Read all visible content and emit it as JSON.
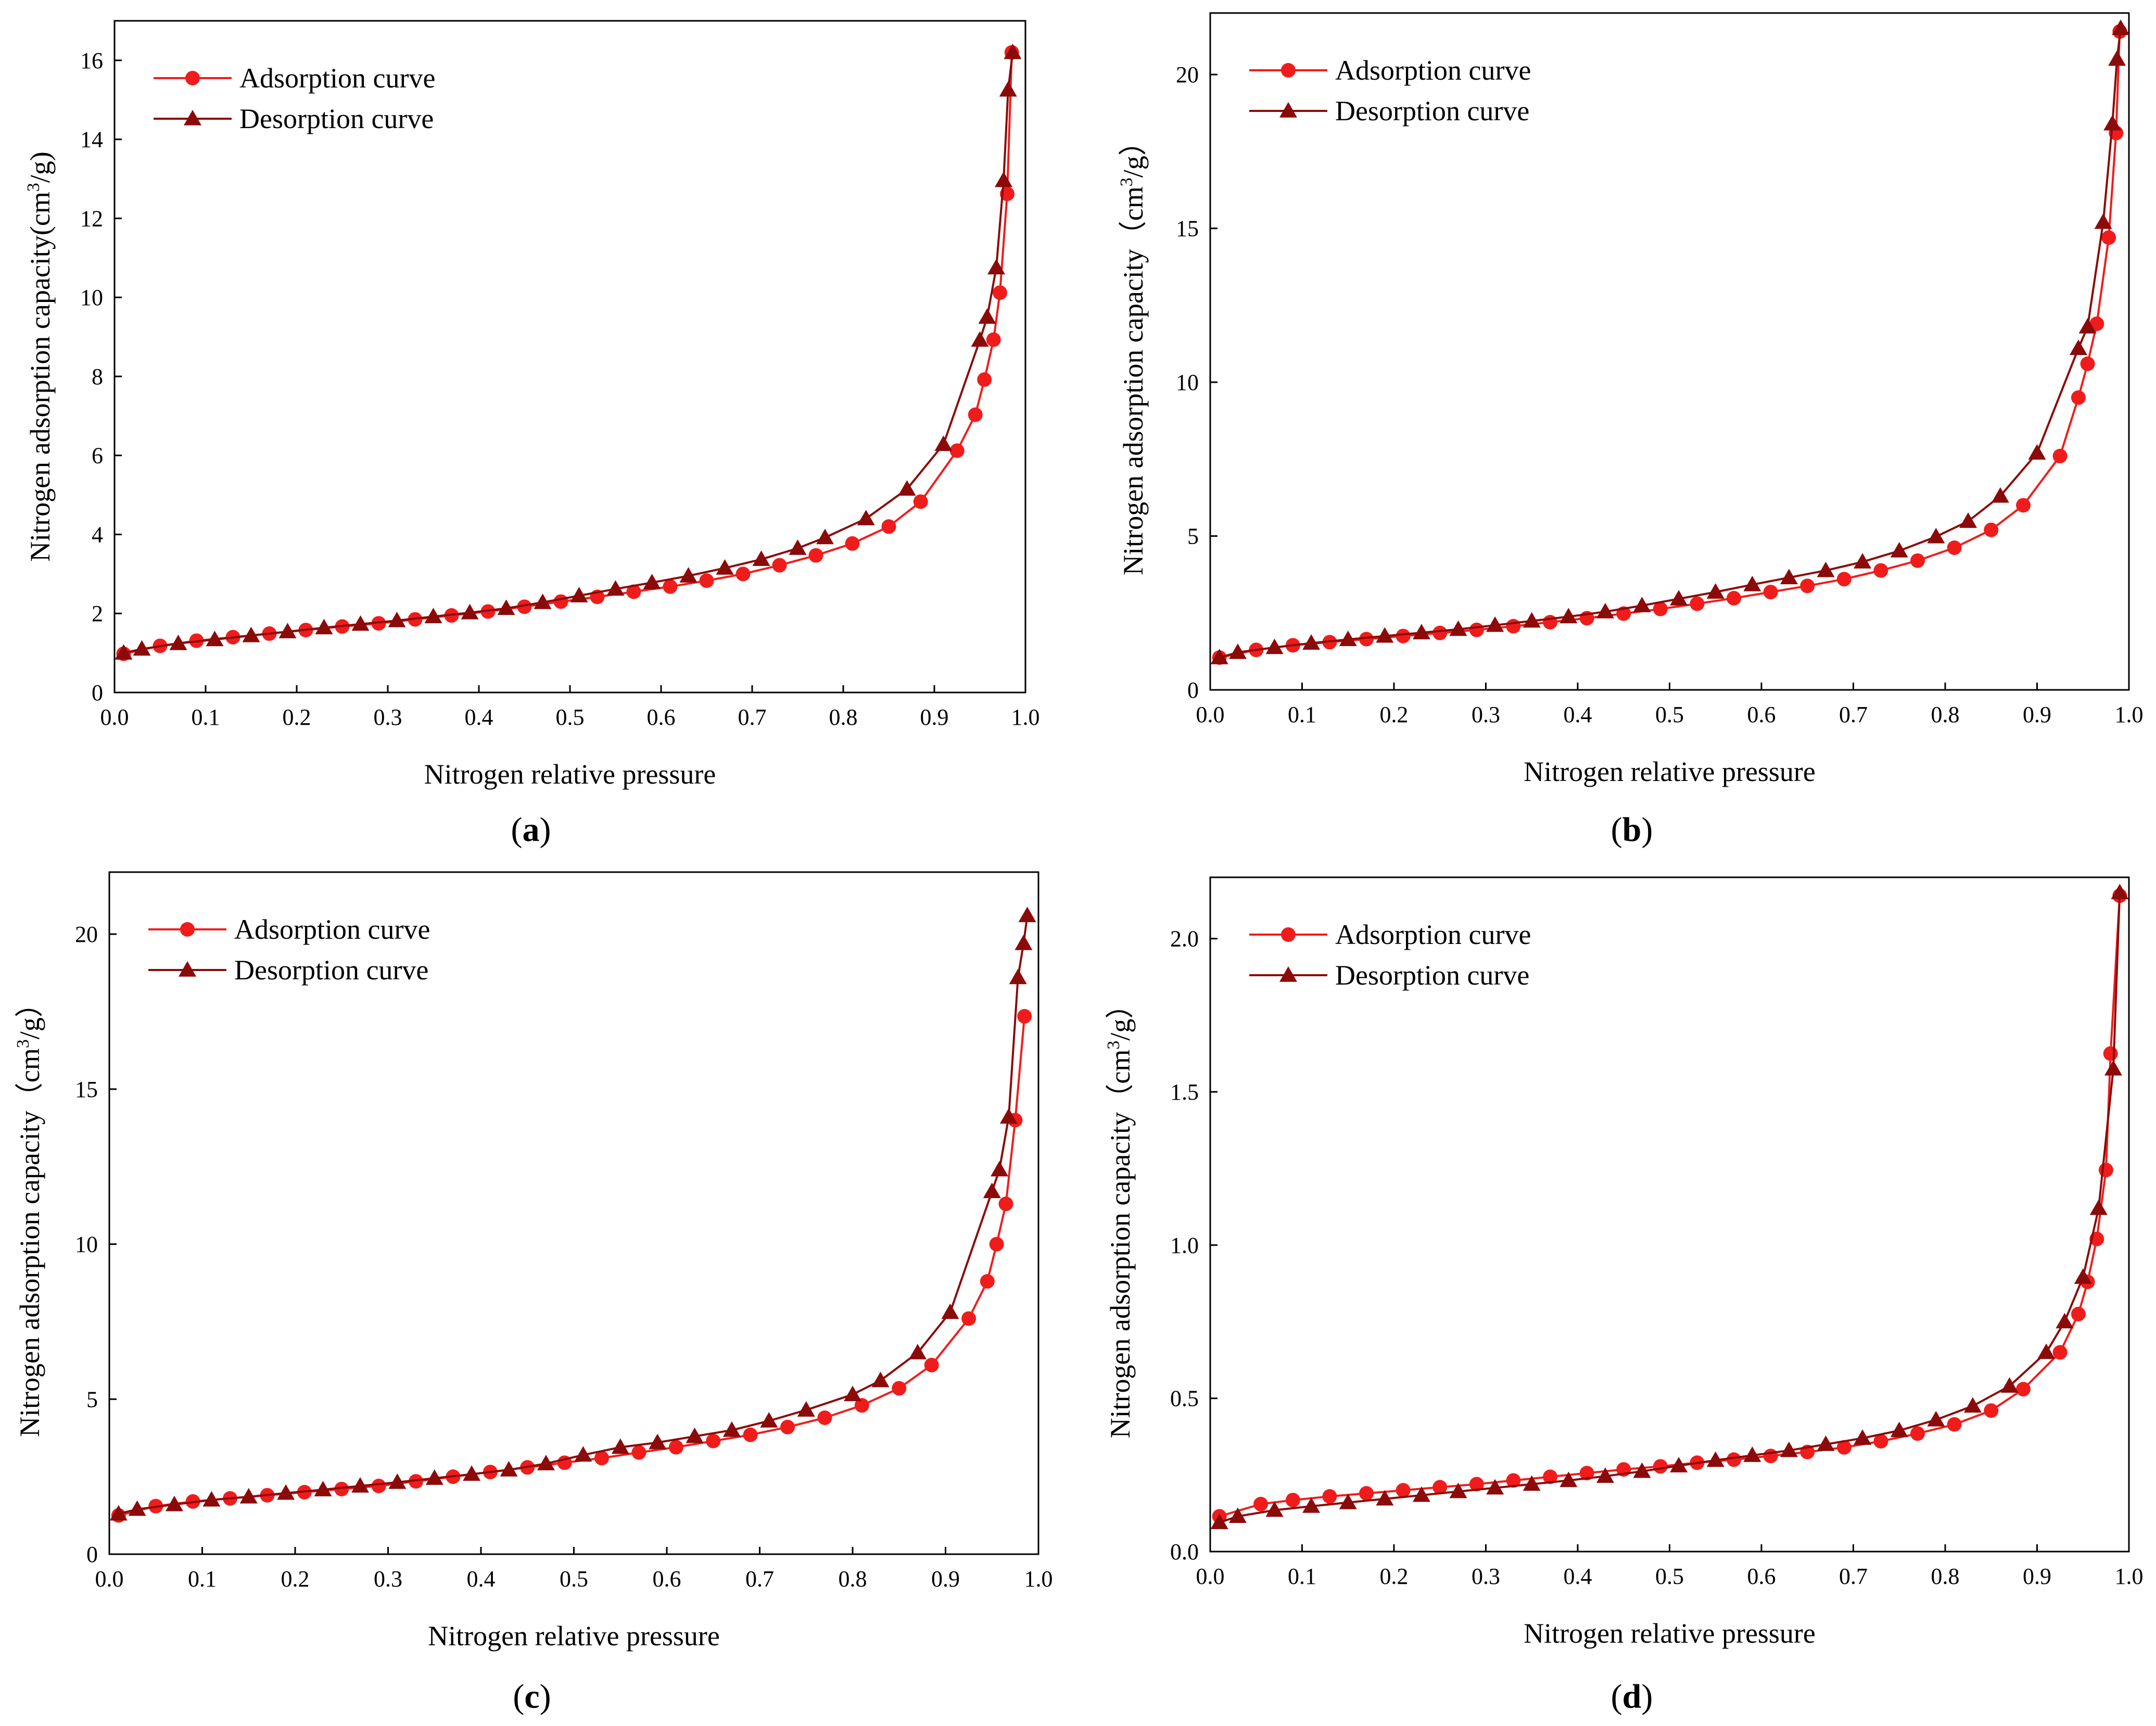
{
  "figure": {
    "colors": {
      "adsorption": "#f01c1c",
      "desorption": "#8b0a0a",
      "axis": "#000000",
      "background": "#ffffff"
    },
    "panels": [
      {
        "id": "a",
        "caption": {
          "open": "(",
          "letter": "a",
          "close": ")"
        },
        "chart_data": {
          "type": "line",
          "title": "",
          "xlabel": "Nitrogen relative pressure",
          "ylabel": "Nitrogen adsorption capacity(cm³/g)",
          "ylabel_parts": {
            "main": "Nitrogen adsorption capacity(cm",
            "sup": "3",
            "tail": "/g)"
          },
          "xlim": [
            0.0,
            1.0
          ],
          "ylim": [
            0,
            17
          ],
          "xticks": [
            0.0,
            0.1,
            0.2,
            0.3,
            0.4,
            0.5,
            0.6,
            0.7,
            0.8,
            0.9,
            1.0
          ],
          "xtick_labels": [
            "0.0",
            "0.1",
            "0.2",
            "0.3",
            "0.4",
            "0.5",
            "0.6",
            "0.7",
            "0.8",
            "0.9",
            "1.0"
          ],
          "yticks": [
            0,
            2,
            4,
            6,
            8,
            10,
            12,
            14,
            16
          ],
          "ytick_labels": [
            "0",
            "2",
            "4",
            "6",
            "8",
            "10",
            "12",
            "14",
            "16"
          ],
          "legend": "top-left",
          "series": [
            {
              "name": "Adsorption curve",
              "marker": "circle",
              "x": [
                0.01,
                0.05,
                0.09,
                0.13,
                0.17,
                0.21,
                0.25,
                0.29,
                0.33,
                0.37,
                0.41,
                0.45,
                0.49,
                0.53,
                0.57,
                0.61,
                0.65,
                0.69,
                0.73,
                0.77,
                0.81,
                0.85,
                0.885,
                0.925,
                0.945,
                0.955,
                0.965,
                0.972,
                0.98,
                0.985
              ],
              "y": [
                0.98,
                1.18,
                1.31,
                1.4,
                1.49,
                1.58,
                1.67,
                1.75,
                1.85,
                1.95,
                2.05,
                2.17,
                2.3,
                2.42,
                2.55,
                2.68,
                2.83,
                3.0,
                3.22,
                3.47,
                3.77,
                4.2,
                4.83,
                6.12,
                7.03,
                7.92,
                8.93,
                10.12,
                12.62,
                16.2
              ]
            },
            {
              "name": "Desorption curve",
              "marker": "triangle",
              "x": [
                0.01,
                0.03,
                0.07,
                0.11,
                0.15,
                0.19,
                0.23,
                0.27,
                0.31,
                0.35,
                0.39,
                0.43,
                0.47,
                0.51,
                0.55,
                0.59,
                0.63,
                0.67,
                0.71,
                0.75,
                0.78,
                0.825,
                0.87,
                0.91,
                0.95,
                0.958,
                0.968,
                0.976,
                0.981,
                0.986
              ],
              "y": [
                1.0,
                1.1,
                1.24,
                1.34,
                1.44,
                1.54,
                1.64,
                1.73,
                1.82,
                1.92,
                2.02,
                2.13,
                2.28,
                2.45,
                2.62,
                2.78,
                2.95,
                3.15,
                3.37,
                3.65,
                3.92,
                4.4,
                5.15,
                6.28,
                8.92,
                9.5,
                10.75,
                12.96,
                15.25,
                16.2
              ]
            }
          ]
        }
      },
      {
        "id": "b",
        "caption": {
          "open": "(",
          "letter": "b",
          "close": ")"
        },
        "chart_data": {
          "type": "line",
          "title": "",
          "xlabel": "Nitrogen relative pressure",
          "ylabel": "Nitrogen adsorption capacity（cm³/g）",
          "ylabel_parts": {
            "main": "Nitrogen adsorption capacity（cm",
            "sup": "3",
            "tail": "/g）"
          },
          "xlim": [
            0.0,
            1.0
          ],
          "ylim": [
            0,
            22
          ],
          "xticks": [
            0.0,
            0.1,
            0.2,
            0.3,
            0.4,
            0.5,
            0.6,
            0.7,
            0.8,
            0.9,
            1.0
          ],
          "xtick_labels": [
            "0.0",
            "0.1",
            "0.2",
            "0.3",
            "0.4",
            "0.5",
            "0.6",
            "0.7",
            "0.8",
            "0.9",
            "1.0"
          ],
          "yticks": [
            0,
            5,
            10,
            15,
            20
          ],
          "ytick_labels": [
            "0",
            "5",
            "10",
            "15",
            "20"
          ],
          "legend": "top-left",
          "series": [
            {
              "name": "Adsorption curve",
              "marker": "circle",
              "x": [
                0.01,
                0.05,
                0.09,
                0.13,
                0.17,
                0.21,
                0.25,
                0.29,
                0.33,
                0.37,
                0.41,
                0.45,
                0.49,
                0.53,
                0.57,
                0.61,
                0.65,
                0.69,
                0.73,
                0.77,
                0.81,
                0.85,
                0.885,
                0.925,
                0.945,
                0.955,
                0.965,
                0.978,
                0.986,
                0.99
              ],
              "y": [
                1.05,
                1.3,
                1.45,
                1.55,
                1.65,
                1.75,
                1.85,
                1.95,
                2.07,
                2.2,
                2.33,
                2.48,
                2.63,
                2.8,
                2.98,
                3.18,
                3.38,
                3.6,
                3.88,
                4.2,
                4.62,
                5.2,
                6.0,
                7.6,
                9.5,
                10.6,
                11.9,
                14.7,
                18.1,
                21.4
              ]
            },
            {
              "name": "Desorption curve",
              "marker": "triangle",
              "x": [
                0.01,
                0.03,
                0.07,
                0.11,
                0.15,
                0.19,
                0.23,
                0.27,
                0.31,
                0.35,
                0.39,
                0.43,
                0.47,
                0.51,
                0.55,
                0.59,
                0.63,
                0.67,
                0.71,
                0.75,
                0.79,
                0.825,
                0.86,
                0.9,
                0.945,
                0.955,
                0.972,
                0.982,
                0.987,
                0.991
              ],
              "y": [
                1.05,
                1.22,
                1.38,
                1.52,
                1.64,
                1.75,
                1.86,
                1.97,
                2.1,
                2.24,
                2.38,
                2.54,
                2.74,
                2.96,
                3.18,
                3.42,
                3.65,
                3.88,
                4.16,
                4.52,
                4.98,
                5.48,
                6.3,
                7.7,
                11.1,
                11.8,
                15.2,
                18.4,
                20.5,
                21.5
              ]
            }
          ]
        }
      },
      {
        "id": "c",
        "caption": {
          "open": "(",
          "letter": "c",
          "close": ")"
        },
        "chart_data": {
          "type": "line",
          "title": "",
          "xlabel": "Nitrogen relative pressure",
          "ylabel": "Nitrogen adsorption capacity（cm³/g）",
          "ylabel_parts": {
            "main": "Nitrogen adsorption capacity（cm",
            "sup": "3",
            "tail": "/g）"
          },
          "xlim": [
            0.0,
            1.0
          ],
          "ylim": [
            0,
            22
          ],
          "xticks": [
            0.0,
            0.1,
            0.2,
            0.3,
            0.4,
            0.5,
            0.6,
            0.7,
            0.8,
            0.9,
            1.0
          ],
          "xtick_labels": [
            "0.0",
            "0.1",
            "0.2",
            "0.3",
            "0.4",
            "0.5",
            "0.6",
            "0.7",
            "0.8",
            "0.9",
            "1.0"
          ],
          "yticks": [
            0,
            5,
            10,
            15,
            20
          ],
          "ytick_labels": [
            "0",
            "5",
            "10",
            "15",
            "20"
          ],
          "legend": "top-left",
          "series": [
            {
              "name": "Adsorption curve",
              "marker": "circle",
              "x": [
                0.01,
                0.05,
                0.09,
                0.13,
                0.17,
                0.21,
                0.25,
                0.29,
                0.33,
                0.37,
                0.41,
                0.45,
                0.49,
                0.53,
                0.57,
                0.61,
                0.65,
                0.69,
                0.73,
                0.77,
                0.81,
                0.85,
                0.885,
                0.925,
                0.945,
                0.955,
                0.965,
                0.975,
                0.985
              ],
              "y": [
                1.25,
                1.55,
                1.7,
                1.8,
                1.9,
                2.0,
                2.1,
                2.2,
                2.35,
                2.5,
                2.65,
                2.8,
                2.95,
                3.1,
                3.28,
                3.45,
                3.65,
                3.85,
                4.1,
                4.4,
                4.8,
                5.35,
                6.1,
                7.6,
                8.8,
                10.0,
                11.3,
                14.0,
                17.35
              ]
            },
            {
              "name": "Desorption curve",
              "marker": "triangle",
              "x": [
                0.01,
                0.03,
                0.07,
                0.11,
                0.15,
                0.19,
                0.23,
                0.27,
                0.31,
                0.35,
                0.39,
                0.43,
                0.47,
                0.51,
                0.55,
                0.59,
                0.63,
                0.67,
                0.71,
                0.75,
                0.8,
                0.83,
                0.87,
                0.905,
                0.95,
                0.958,
                0.968,
                0.978,
                0.984,
                0.988
              ],
              "y": [
                1.3,
                1.45,
                1.6,
                1.75,
                1.85,
                1.97,
                2.08,
                2.2,
                2.32,
                2.45,
                2.58,
                2.72,
                2.92,
                3.2,
                3.45,
                3.6,
                3.8,
                4.0,
                4.3,
                4.65,
                5.15,
                5.6,
                6.5,
                7.8,
                11.7,
                12.4,
                14.1,
                18.6,
                19.7,
                20.6
              ]
            }
          ]
        }
      },
      {
        "id": "d",
        "caption": {
          "open": "(",
          "letter": "d",
          "close": ")"
        },
        "chart_data": {
          "type": "line",
          "title": "",
          "xlabel": "Nitrogen relative pressure",
          "ylabel": "Nitrogen adsorption capacity（cm³/g）",
          "ylabel_parts": {
            "main": "Nitrogen adsorption capacity（cm",
            "sup": "3",
            "tail": "/g）"
          },
          "xlim": [
            0.0,
            1.0
          ],
          "ylim": [
            0,
            2.2
          ],
          "xticks": [
            0.0,
            0.1,
            0.2,
            0.3,
            0.4,
            0.5,
            0.6,
            0.7,
            0.8,
            0.9,
            1.0
          ],
          "xtick_labels": [
            "0.0",
            "0.1",
            "0.2",
            "0.3",
            "0.4",
            "0.5",
            "0.6",
            "0.7",
            "0.8",
            "0.9",
            "1.0"
          ],
          "yticks": [
            0.0,
            0.5,
            1.0,
            1.5,
            2.0
          ],
          "ytick_labels": [
            "0.0",
            "0.5",
            "1.0",
            "1.5",
            "2.0"
          ],
          "legend": "top-left",
          "series": [
            {
              "name": "Adsorption curve",
              "marker": "circle",
              "x": [
                0.01,
                0.055,
                0.09,
                0.13,
                0.17,
                0.21,
                0.25,
                0.29,
                0.33,
                0.37,
                0.41,
                0.45,
                0.49,
                0.53,
                0.57,
                0.61,
                0.65,
                0.69,
                0.73,
                0.77,
                0.81,
                0.85,
                0.885,
                0.925,
                0.945,
                0.955,
                0.965,
                0.975,
                0.98,
                0.99
              ],
              "y": [
                0.115,
                0.155,
                0.168,
                0.18,
                0.19,
                0.2,
                0.21,
                0.22,
                0.232,
                0.244,
                0.256,
                0.268,
                0.278,
                0.29,
                0.3,
                0.312,
                0.325,
                0.34,
                0.36,
                0.385,
                0.415,
                0.46,
                0.53,
                0.65,
                0.775,
                0.88,
                1.02,
                1.245,
                1.625,
                2.14
              ]
            },
            {
              "name": "Desorption curve",
              "marker": "triangle",
              "x": [
                0.01,
                0.03,
                0.07,
                0.11,
                0.15,
                0.19,
                0.23,
                0.27,
                0.31,
                0.35,
                0.39,
                0.43,
                0.47,
                0.51,
                0.55,
                0.59,
                0.63,
                0.67,
                0.71,
                0.75,
                0.79,
                0.83,
                0.87,
                0.91,
                0.93,
                0.95,
                0.967,
                0.983,
                0.99
              ],
              "y": [
                0.095,
                0.115,
                0.135,
                0.148,
                0.16,
                0.172,
                0.184,
                0.196,
                0.208,
                0.22,
                0.232,
                0.246,
                0.262,
                0.28,
                0.298,
                0.314,
                0.33,
                0.35,
                0.37,
                0.395,
                0.43,
                0.475,
                0.54,
                0.65,
                0.75,
                0.895,
                1.12,
                1.575,
                2.15
              ]
            }
          ]
        }
      }
    ]
  }
}
